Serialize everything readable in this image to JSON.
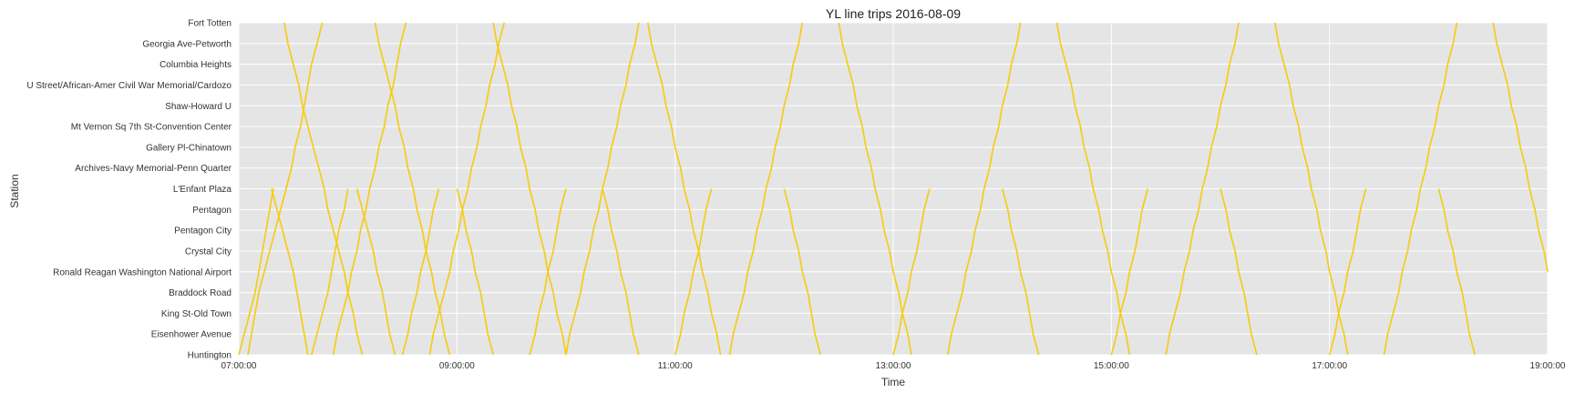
{
  "chart_data": {
    "type": "line",
    "title": "YL line trips 2016-08-09",
    "xlabel": "Time",
    "ylabel": "Station",
    "xlim": [
      "07:00:00",
      "19:00:00"
    ],
    "x_ticks": [
      "07:00:00",
      "09:00:00",
      "11:00:00",
      "13:00:00",
      "15:00:00",
      "17:00:00",
      "19:00:00"
    ],
    "stations": [
      "Huntington",
      "Eisenhower Avenue",
      "King St-Old Town",
      "Braddock Road",
      "Ronald Reagan Washington National Airport",
      "Crystal City",
      "Pentagon City",
      "Pentagon",
      "L'Enfant Plaza",
      "Archives-Navy Memorial-Penn Quarter",
      "Gallery Pl-Chinatown",
      "Mt Vernon Sq 7th St-Convention Center",
      "Shaw-Howard U",
      "U Street/African-Amer Civil War Memorial/Cardozo",
      "Columbia Heights",
      "Georgia Ave-Petworth",
      "Fort Totten"
    ],
    "grid": true,
    "line_color": "#f7cb0c",
    "background_color": "#e5e5e5",
    "series": [
      {
        "x": [
          "07:00:00",
          "07:03:00",
          "07:06:00",
          "07:09:00",
          "07:11:00",
          "07:13:00",
          "07:15:00",
          "07:17:00",
          "07:19:00"
        ],
        "y": [
          0,
          1,
          2,
          3,
          4,
          5,
          6,
          7,
          8
        ]
      },
      {
        "x": [
          "07:05:00",
          "07:07:00",
          "07:09:00",
          "07:11:00",
          "07:14:00",
          "07:17:00",
          "07:20:00",
          "07:23:00",
          "07:26:00",
          "07:29:00",
          "07:31:00",
          "07:34:00",
          "07:36:00",
          "07:38:00",
          "07:40:00",
          "07:43:00",
          "07:46:00"
        ],
        "y": [
          0,
          1,
          2,
          3,
          4,
          5,
          6,
          7,
          8,
          9,
          10,
          11,
          12,
          13,
          14,
          15,
          16
        ]
      },
      {
        "x": [
          "07:18:00",
          "07:21:00",
          "07:24:00",
          "07:27:00",
          "07:30:00",
          "07:32:00",
          "07:34:00",
          "07:36:00",
          "07:38:00"
        ],
        "y": [
          8,
          7,
          6,
          5,
          4,
          3,
          2,
          1,
          0
        ]
      },
      {
        "x": [
          "07:25:00",
          "07:27:00",
          "07:30:00",
          "07:33:00",
          "07:35:00",
          "07:38:00",
          "07:41:00",
          "07:44:00",
          "07:47:00",
          "07:49:00",
          "07:52:00",
          "07:55:00",
          "07:58:00",
          "08:00:00",
          "08:03:00",
          "08:05:00",
          "08:08:00"
        ],
        "y": [
          16,
          15,
          14,
          13,
          12,
          11,
          10,
          9,
          8,
          7,
          6,
          5,
          4,
          3,
          2,
          1,
          0
        ]
      },
      {
        "x": [
          "07:40:00",
          "07:43:00",
          "07:46:00",
          "07:49:00",
          "07:51:00",
          "07:53:00",
          "07:55:00",
          "07:58:00",
          "08:00:00"
        ],
        "y": [
          0,
          1,
          2,
          3,
          4,
          5,
          6,
          7,
          8
        ]
      },
      {
        "x": [
          "07:52:00",
          "07:54:00",
          "07:57:00",
          "08:00:00",
          "08:02:00",
          "08:05:00",
          "08:07:00",
          "08:10:00",
          "08:12:00",
          "08:15:00",
          "08:17:00",
          "08:20:00",
          "08:22:00",
          "08:25:00",
          "08:27:00",
          "08:29:00",
          "08:32:00"
        ],
        "y": [
          0,
          1,
          2,
          3,
          4,
          5,
          6,
          7,
          8,
          9,
          10,
          11,
          12,
          13,
          14,
          15,
          16
        ]
      },
      {
        "x": [
          "08:05:00",
          "08:08:00",
          "08:11:00",
          "08:14:00",
          "08:16:00",
          "08:19:00",
          "08:21:00",
          "08:23:00",
          "08:26:00"
        ],
        "y": [
          8,
          7,
          6,
          5,
          4,
          3,
          2,
          1,
          0
        ]
      },
      {
        "x": [
          "08:15:00",
          "08:17:00",
          "08:20:00",
          "08:23:00",
          "08:26:00",
          "08:28:00",
          "08:31:00",
          "08:33:00",
          "08:36:00",
          "08:38:00",
          "08:41:00",
          "08:43:00",
          "08:46:00",
          "08:48:00",
          "08:51:00",
          "08:53:00",
          "08:56:00"
        ],
        "y": [
          16,
          15,
          14,
          13,
          12,
          11,
          10,
          9,
          8,
          7,
          6,
          5,
          4,
          3,
          2,
          1,
          0
        ]
      },
      {
        "x": [
          "08:30:00",
          "08:33:00",
          "08:35:00",
          "08:38:00",
          "08:40:00",
          "08:43:00",
          "08:45:00",
          "08:47:00",
          "08:50:00"
        ],
        "y": [
          0,
          1,
          2,
          3,
          4,
          5,
          6,
          7,
          8
        ]
      },
      {
        "x": [
          "08:45:00",
          "08:47:00",
          "08:50:00",
          "08:53:00",
          "08:56:00",
          "08:58:00",
          "09:01:00",
          "09:03:00",
          "09:06:00",
          "09:08:00",
          "09:11:00",
          "09:13:00",
          "09:16:00",
          "09:18:00",
          "09:21:00",
          "09:23:00",
          "09:26:00"
        ],
        "y": [
          0,
          1,
          2,
          3,
          4,
          5,
          6,
          7,
          8,
          9,
          10,
          11,
          12,
          13,
          14,
          15,
          16
        ]
      },
      {
        "x": [
          "09:00:00",
          "09:03:00",
          "09:05:00",
          "09:08:00",
          "09:10:00",
          "09:13:00",
          "09:15:00",
          "09:17:00",
          "09:20:00"
        ],
        "y": [
          8,
          7,
          6,
          5,
          4,
          3,
          2,
          1,
          0
        ]
      },
      {
        "x": [
          "09:20:00",
          "09:22:00",
          "09:25:00",
          "09:28:00",
          "09:30:00",
          "09:33:00",
          "09:35:00",
          "09:38:00",
          "09:40:00",
          "09:43:00",
          "09:45:00",
          "09:48:00",
          "09:50:00",
          "09:53:00",
          "09:55:00",
          "09:58:00",
          "10:00:00"
        ],
        "y": [
          16,
          15,
          14,
          13,
          12,
          11,
          10,
          9,
          8,
          7,
          6,
          5,
          4,
          3,
          2,
          1,
          0
        ]
      },
      {
        "x": [
          "09:40:00",
          "09:43:00",
          "09:45:00",
          "09:48:00",
          "09:50:00",
          "09:53:00",
          "09:55:00",
          "09:57:00",
          "10:00:00"
        ],
        "y": [
          0,
          1,
          2,
          3,
          4,
          5,
          6,
          7,
          8
        ]
      },
      {
        "x": [
          "10:00:00",
          "10:02:00",
          "10:05:00",
          "10:08:00",
          "10:10:00",
          "10:13:00",
          "10:15:00",
          "10:18:00",
          "10:20:00",
          "10:23:00",
          "10:25:00",
          "10:28:00",
          "10:30:00",
          "10:33:00",
          "10:35:00",
          "10:38:00",
          "10:40:00"
        ],
        "y": [
          0,
          1,
          2,
          3,
          4,
          5,
          6,
          7,
          8,
          9,
          10,
          11,
          12,
          13,
          14,
          15,
          16
        ]
      },
      {
        "x": [
          "10:20:00",
          "10:23:00",
          "10:25:00",
          "10:28:00",
          "10:30:00",
          "10:33:00",
          "10:35:00",
          "10:37:00",
          "10:40:00"
        ],
        "y": [
          8,
          7,
          6,
          5,
          4,
          3,
          2,
          1,
          0
        ]
      },
      {
        "x": [
          "10:45:00",
          "10:47:00",
          "10:50:00",
          "10:53:00",
          "10:55:00",
          "10:58:00",
          "11:00:00",
          "11:03:00",
          "11:05:00",
          "11:08:00",
          "11:10:00",
          "11:13:00",
          "11:15:00",
          "11:18:00",
          "11:20:00",
          "11:23:00",
          "11:25:00"
        ],
        "y": [
          16,
          15,
          14,
          13,
          12,
          11,
          10,
          9,
          8,
          7,
          6,
          5,
          4,
          3,
          2,
          1,
          0
        ]
      },
      {
        "x": [
          "11:00:00",
          "11:03:00",
          "11:05:00",
          "11:08:00",
          "11:10:00",
          "11:13:00",
          "11:15:00",
          "11:17:00",
          "11:20:00"
        ],
        "y": [
          0,
          1,
          2,
          3,
          4,
          5,
          6,
          7,
          8
        ]
      },
      {
        "x": [
          "11:30:00",
          "11:32:00",
          "11:35:00",
          "11:38:00",
          "11:40:00",
          "11:43:00",
          "11:45:00",
          "11:48:00",
          "11:50:00",
          "11:53:00",
          "11:55:00",
          "11:58:00",
          "12:00:00",
          "12:03:00",
          "12:05:00",
          "12:08:00",
          "12:10:00"
        ],
        "y": [
          0,
          1,
          2,
          3,
          4,
          5,
          6,
          7,
          8,
          9,
          10,
          11,
          12,
          13,
          14,
          15,
          16
        ]
      },
      {
        "x": [
          "12:00:00",
          "12:03:00",
          "12:05:00",
          "12:08:00",
          "12:10:00",
          "12:13:00",
          "12:15:00",
          "12:17:00",
          "12:20:00"
        ],
        "y": [
          8,
          7,
          6,
          5,
          4,
          3,
          2,
          1,
          0
        ]
      },
      {
        "x": [
          "12:30:00",
          "12:32:00",
          "12:35:00",
          "12:38:00",
          "12:40:00",
          "12:43:00",
          "12:45:00",
          "12:48:00",
          "12:50:00",
          "12:53:00",
          "12:55:00",
          "12:58:00",
          "13:00:00",
          "13:03:00",
          "13:05:00",
          "13:08:00",
          "13:10:00"
        ],
        "y": [
          16,
          15,
          14,
          13,
          12,
          11,
          10,
          9,
          8,
          7,
          6,
          5,
          4,
          3,
          2,
          1,
          0
        ]
      },
      {
        "x": [
          "13:00:00",
          "13:03:00",
          "13:05:00",
          "13:08:00",
          "13:10:00",
          "13:13:00",
          "13:15:00",
          "13:17:00",
          "13:20:00"
        ],
        "y": [
          0,
          1,
          2,
          3,
          4,
          5,
          6,
          7,
          8
        ]
      },
      {
        "x": [
          "13:30:00",
          "13:32:00",
          "13:35:00",
          "13:38:00",
          "13:40:00",
          "13:43:00",
          "13:45:00",
          "13:48:00",
          "13:50:00",
          "13:53:00",
          "13:55:00",
          "13:58:00",
          "14:00:00",
          "14:03:00",
          "14:05:00",
          "14:08:00",
          "14:10:00"
        ],
        "y": [
          0,
          1,
          2,
          3,
          4,
          5,
          6,
          7,
          8,
          9,
          10,
          11,
          12,
          13,
          14,
          15,
          16
        ]
      },
      {
        "x": [
          "14:00:00",
          "14:03:00",
          "14:05:00",
          "14:08:00",
          "14:10:00",
          "14:13:00",
          "14:15:00",
          "14:17:00",
          "14:20:00"
        ],
        "y": [
          8,
          7,
          6,
          5,
          4,
          3,
          2,
          1,
          0
        ]
      },
      {
        "x": [
          "14:30:00",
          "14:32:00",
          "14:35:00",
          "14:38:00",
          "14:40:00",
          "14:43:00",
          "14:45:00",
          "14:48:00",
          "14:50:00",
          "14:53:00",
          "14:55:00",
          "14:58:00",
          "15:00:00",
          "15:03:00",
          "15:05:00",
          "15:08:00",
          "15:10:00"
        ],
        "y": [
          16,
          15,
          14,
          13,
          12,
          11,
          10,
          9,
          8,
          7,
          6,
          5,
          4,
          3,
          2,
          1,
          0
        ]
      },
      {
        "x": [
          "15:00:00",
          "15:03:00",
          "15:05:00",
          "15:08:00",
          "15:10:00",
          "15:13:00",
          "15:15:00",
          "15:17:00",
          "15:20:00"
        ],
        "y": [
          0,
          1,
          2,
          3,
          4,
          5,
          6,
          7,
          8
        ]
      },
      {
        "x": [
          "15:30:00",
          "15:32:00",
          "15:35:00",
          "15:38:00",
          "15:40:00",
          "15:43:00",
          "15:45:00",
          "15:48:00",
          "15:50:00",
          "15:53:00",
          "15:55:00",
          "15:58:00",
          "16:00:00",
          "16:03:00",
          "16:05:00",
          "16:08:00",
          "16:10:00"
        ],
        "y": [
          0,
          1,
          2,
          3,
          4,
          5,
          6,
          7,
          8,
          9,
          10,
          11,
          12,
          13,
          14,
          15,
          16
        ]
      },
      {
        "x": [
          "16:00:00",
          "16:03:00",
          "16:05:00",
          "16:08:00",
          "16:10:00",
          "16:13:00",
          "16:15:00",
          "16:17:00",
          "16:20:00"
        ],
        "y": [
          8,
          7,
          6,
          5,
          4,
          3,
          2,
          1,
          0
        ]
      },
      {
        "x": [
          "16:30:00",
          "16:32:00",
          "16:35:00",
          "16:38:00",
          "16:40:00",
          "16:43:00",
          "16:45:00",
          "16:48:00",
          "16:50:00",
          "16:53:00",
          "16:55:00",
          "16:58:00",
          "17:00:00",
          "17:03:00",
          "17:05:00",
          "17:08:00",
          "17:10:00"
        ],
        "y": [
          16,
          15,
          14,
          13,
          12,
          11,
          10,
          9,
          8,
          7,
          6,
          5,
          4,
          3,
          2,
          1,
          0
        ]
      },
      {
        "x": [
          "17:00:00",
          "17:03:00",
          "17:05:00",
          "17:08:00",
          "17:10:00",
          "17:13:00",
          "17:15:00",
          "17:17:00",
          "17:20:00"
        ],
        "y": [
          0,
          1,
          2,
          3,
          4,
          5,
          6,
          7,
          8
        ]
      },
      {
        "x": [
          "17:30:00",
          "17:32:00",
          "17:35:00",
          "17:38:00",
          "17:40:00",
          "17:43:00",
          "17:45:00",
          "17:48:00",
          "17:50:00",
          "17:53:00",
          "17:55:00",
          "17:58:00",
          "18:00:00",
          "18:03:00",
          "18:05:00",
          "18:08:00",
          "18:10:00"
        ],
        "y": [
          0,
          1,
          2,
          3,
          4,
          5,
          6,
          7,
          8,
          9,
          10,
          11,
          12,
          13,
          14,
          15,
          16
        ]
      },
      {
        "x": [
          "18:00:00",
          "18:03:00",
          "18:05:00",
          "18:08:00",
          "18:10:00",
          "18:13:00",
          "18:15:00",
          "18:17:00",
          "18:20:00"
        ],
        "y": [
          8,
          7,
          6,
          5,
          4,
          3,
          2,
          1,
          0
        ]
      },
      {
        "x": [
          "18:30:00",
          "18:32:00",
          "18:35:00",
          "18:38:00",
          "18:40:00",
          "18:43:00",
          "18:45:00",
          "18:48:00",
          "18:50:00",
          "18:53:00",
          "18:55:00",
          "18:58:00",
          "19:00:00"
        ],
        "y": [
          16,
          15,
          14,
          13,
          12,
          11,
          10,
          9,
          8,
          7,
          6,
          5,
          4
        ]
      }
    ]
  }
}
